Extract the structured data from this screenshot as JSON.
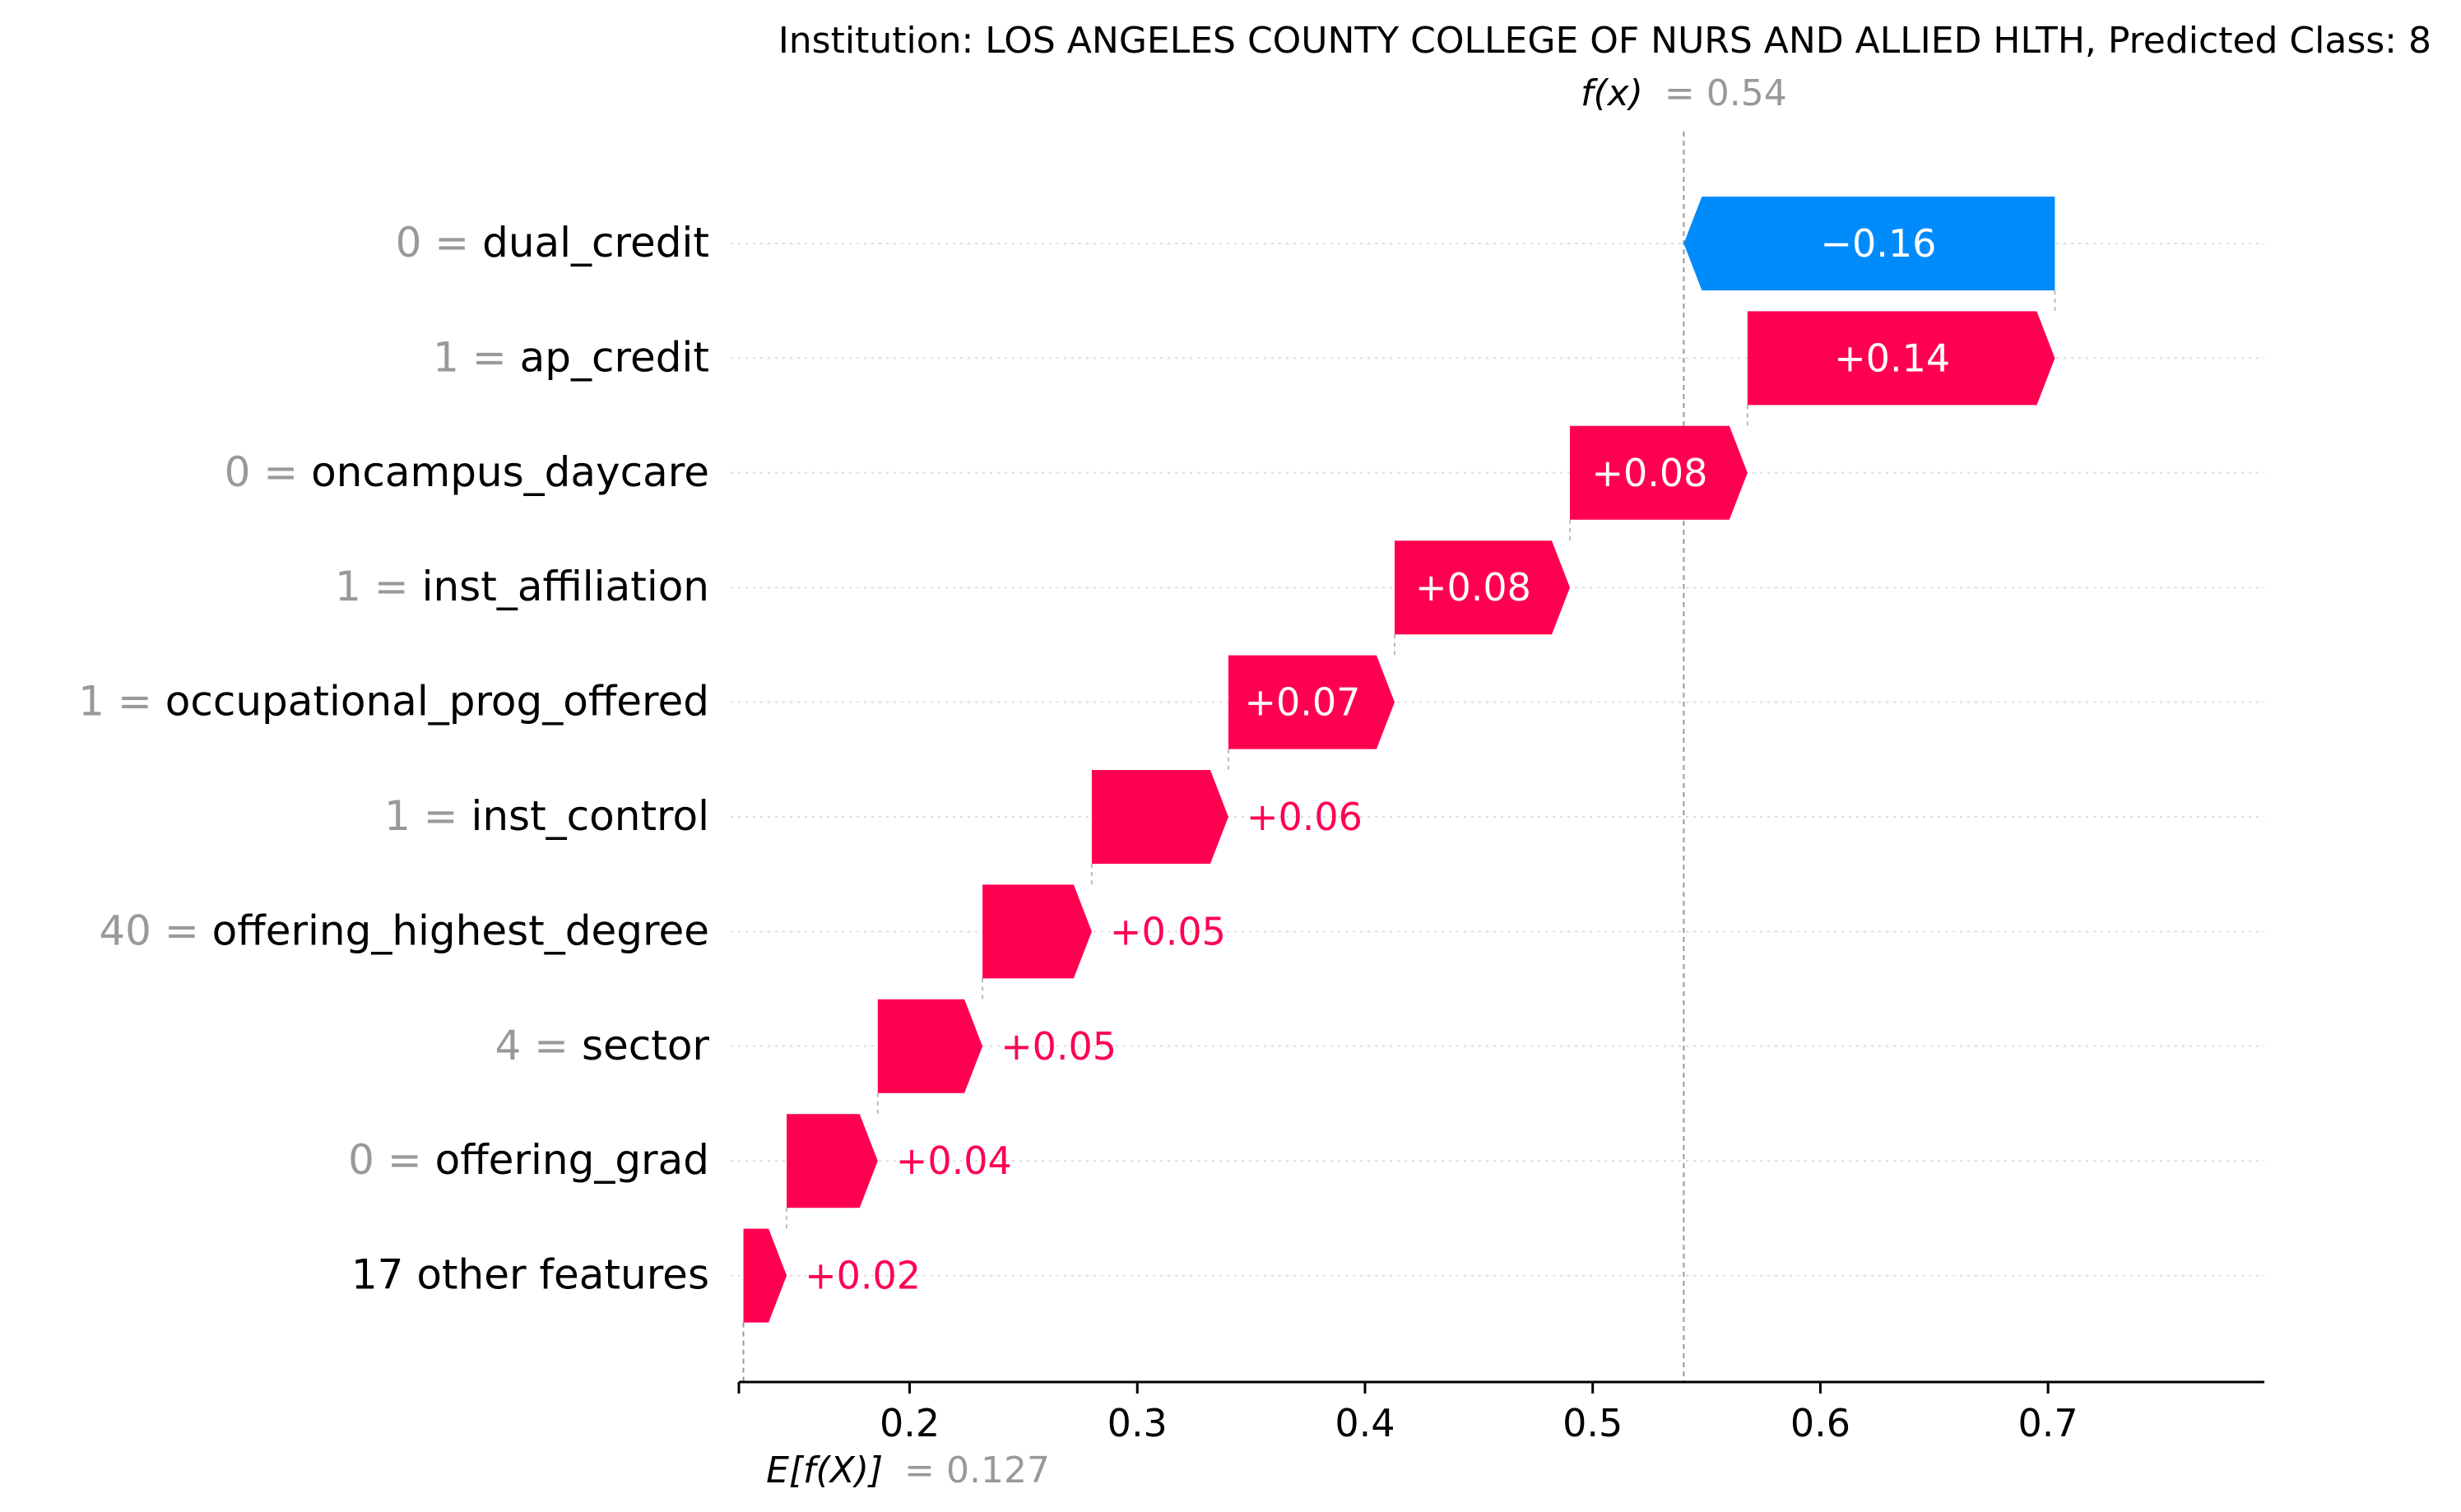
{
  "title": "Institution: LOS ANGELES COUNTY COLLEGE OF NURS AND ALLIED HLTH, Predicted Class: 8",
  "fx_label": "f(x)",
  "fx_value_text": "= 0.54",
  "efx_label": "E[f(X)]",
  "efx_value_text": "= 0.127",
  "colors": {
    "positive": "#ff0051",
    "negative": "#008bfb",
    "muted": "#999999",
    "text": "#000000"
  },
  "chart_data": {
    "type": "waterfall",
    "base_value": 0.127,
    "fx": 0.54,
    "xlim": [
      0.125,
      0.795
    ],
    "xticks": [
      0.2,
      0.3,
      0.4,
      0.5,
      0.6,
      0.7
    ],
    "xtick_labels": [
      "0.2",
      "0.3",
      "0.4",
      "0.5",
      "0.6",
      "0.7"
    ],
    "features": [
      {
        "value": "0",
        "name": "dual_credit",
        "shap": -0.163,
        "label": "−0.16"
      },
      {
        "value": "1",
        "name": "ap_credit",
        "shap": 0.135,
        "label": "+0.14"
      },
      {
        "value": "0",
        "name": "oncampus_daycare",
        "shap": 0.078,
        "label": "+0.08"
      },
      {
        "value": "1",
        "name": "inst_affiliation",
        "shap": 0.077,
        "label": "+0.08"
      },
      {
        "value": "1",
        "name": "occupational_prog_offered",
        "shap": 0.073,
        "label": "+0.07"
      },
      {
        "value": "1",
        "name": "inst_control",
        "shap": 0.06,
        "label": "+0.06"
      },
      {
        "value": "40",
        "name": "offering_highest_degree",
        "shap": 0.048,
        "label": "+0.05"
      },
      {
        "value": "4",
        "name": "sector",
        "shap": 0.046,
        "label": "+0.05"
      },
      {
        "value": "0",
        "name": "offering_grad",
        "shap": 0.04,
        "label": "+0.04"
      },
      {
        "value": "",
        "name": "17 other features",
        "shap": 0.019,
        "label": "+0.02"
      }
    ]
  }
}
